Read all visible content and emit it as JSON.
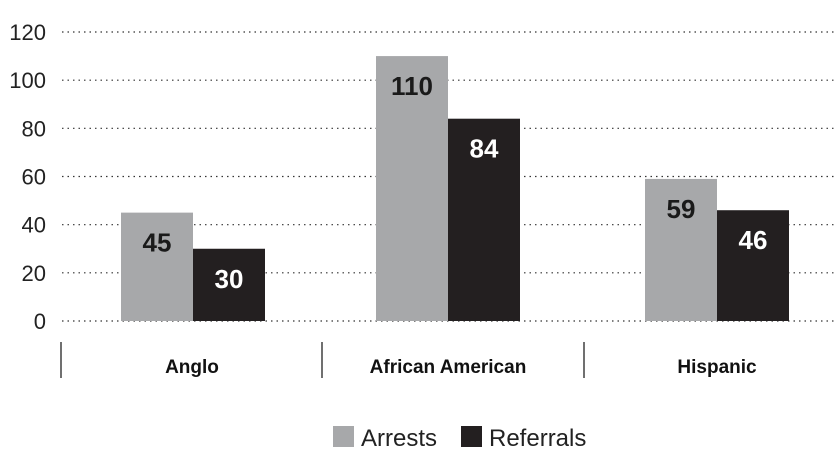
{
  "chart_data": {
    "type": "bar",
    "categories": [
      "Anglo",
      "African American",
      "Hispanic"
    ],
    "series": [
      {
        "name": "Arrests",
        "values": [
          45,
          110,
          59
        ],
        "color": "#a7a8aa",
        "label_color": "#1a1a1a"
      },
      {
        "name": "Referrals",
        "values": [
          30,
          84,
          46
        ],
        "color": "#231f20",
        "label_color": "#ffffff"
      }
    ],
    "yticks": [
      0,
      20,
      40,
      60,
      80,
      100,
      120
    ],
    "ylim": [
      0,
      120
    ],
    "grid": "dotted-horizontal",
    "legend_position": "bottom-center",
    "title": "",
    "xlabel": "",
    "ylabel": ""
  }
}
